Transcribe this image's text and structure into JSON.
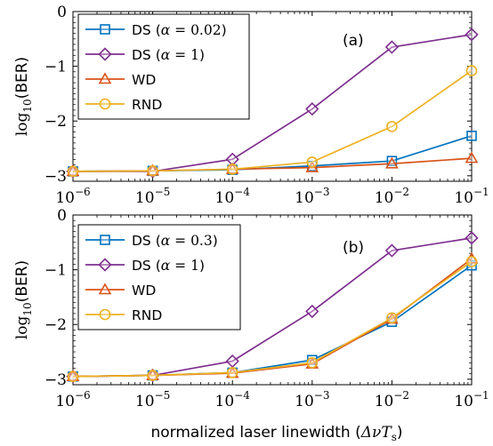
{
  "chart_data": [
    {
      "type": "line",
      "panel_label": "(a)",
      "x_scale": "log",
      "x": [
        1e-06,
        1e-05,
        0.0001,
        0.001,
        0.01,
        0.1
      ],
      "x_tick_labels": [
        {
          "base": "10",
          "exp": "−6"
        },
        {
          "base": "10",
          "exp": "−5"
        },
        {
          "base": "10",
          "exp": "−4"
        },
        {
          "base": "10",
          "exp": "−3"
        },
        {
          "base": "10",
          "exp": "−2"
        },
        {
          "base": "10",
          "exp": "−1"
        }
      ],
      "ylim": [
        -3.1,
        0
      ],
      "y_ticks": [
        0,
        -1,
        -2,
        -3
      ],
      "y_tick_labels": [
        "0",
        "−1",
        "−2",
        "−3"
      ],
      "ylabel_main": "log",
      "ylabel_sub": "10",
      "ylabel_arg": "(BER)",
      "grid": false,
      "legend_position": "top-left",
      "series": [
        {
          "name": "DS",
          "param_symbol": "α",
          "param_value": "0.02",
          "color": "#0072BD",
          "marker": "square",
          "values": [
            -2.92,
            -2.91,
            -2.89,
            -2.82,
            -2.73,
            -2.27
          ]
        },
        {
          "name": "DS",
          "param_symbol": "α",
          "param_value": "1",
          "color": "#7E2F8E",
          "marker": "diamond",
          "values": [
            -2.92,
            -2.92,
            -2.7,
            -1.78,
            -0.65,
            -0.42
          ]
        },
        {
          "name": "WD",
          "param_symbol": "",
          "param_value": "",
          "color": "#D95319",
          "marker": "triangle",
          "values": [
            -2.92,
            -2.91,
            -2.88,
            -2.85,
            -2.78,
            -2.68
          ]
        },
        {
          "name": "RND",
          "param_symbol": "",
          "param_value": "",
          "color": "#EDB120",
          "marker": "circle",
          "values": [
            -2.92,
            -2.91,
            -2.88,
            -2.75,
            -2.1,
            -1.08
          ]
        }
      ]
    },
    {
      "type": "line",
      "panel_label": "(b)",
      "x_scale": "log",
      "x": [
        1e-06,
        1e-05,
        0.0001,
        0.001,
        0.01,
        0.1
      ],
      "x_tick_labels": [
        {
          "base": "10",
          "exp": "−6"
        },
        {
          "base": "10",
          "exp": "−5"
        },
        {
          "base": "10",
          "exp": "−4"
        },
        {
          "base": "10",
          "exp": "−3"
        },
        {
          "base": "10",
          "exp": "−2"
        },
        {
          "base": "10",
          "exp": "−1"
        }
      ],
      "ylim": [
        -3.1,
        0
      ],
      "y_ticks": [
        0,
        -1,
        -2,
        -3
      ],
      "y_tick_labels": [
        "0",
        "−1",
        "−2",
        "−3"
      ],
      "ylabel_main": "log",
      "ylabel_sub": "10",
      "ylabel_arg": "(BER)",
      "xlabel_text": "normalized laser linewidth (",
      "xlabel_math": "Δν",
      "xlabel_T": "T",
      "xlabel_T_sub": "s",
      "xlabel_close": ")",
      "grid": false,
      "legend_position": "top-left",
      "series": [
        {
          "name": "DS",
          "param_symbol": "α",
          "param_value": "0.3",
          "color": "#0072BD",
          "marker": "square",
          "values": [
            -2.95,
            -2.93,
            -2.88,
            -2.65,
            -1.95,
            -0.92
          ]
        },
        {
          "name": "DS",
          "param_symbol": "α",
          "param_value": "1",
          "color": "#7E2F8E",
          "marker": "diamond",
          "values": [
            -2.95,
            -2.93,
            -2.67,
            -1.76,
            -0.65,
            -0.42
          ]
        },
        {
          "name": "WD",
          "param_symbol": "",
          "param_value": "",
          "color": "#D95319",
          "marker": "triangle",
          "values": [
            -2.95,
            -2.93,
            -2.89,
            -2.72,
            -1.9,
            -0.8
          ]
        },
        {
          "name": "RND",
          "param_symbol": "",
          "param_value": "",
          "color": "#EDB120",
          "marker": "circle",
          "values": [
            -2.95,
            -2.93,
            -2.88,
            -2.7,
            -1.88,
            -0.85
          ]
        }
      ]
    }
  ]
}
